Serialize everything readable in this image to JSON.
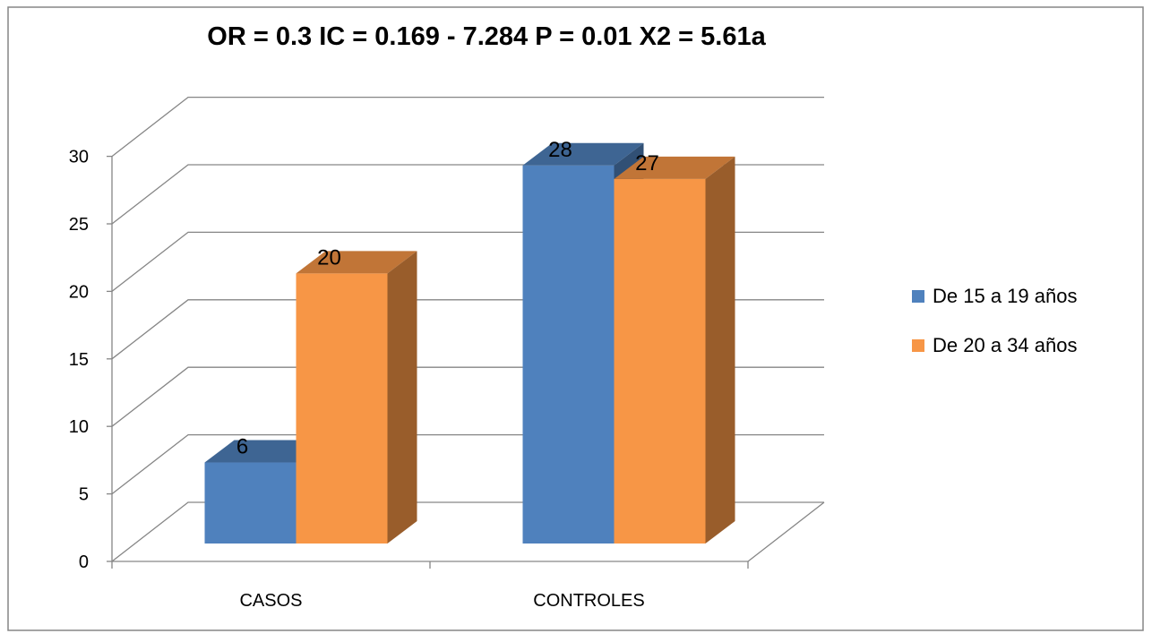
{
  "chart_data": {
    "type": "bar",
    "title": "OR = 0.3   IC = 0.169 - 7.284   P = 0.01   X2 = 5.61a",
    "categories": [
      "CASOS",
      "CONTROLES"
    ],
    "series": [
      {
        "name": "De 15 a 19 años",
        "values": [
          6,
          28
        ],
        "color": "#4f81bd"
      },
      {
        "name": "De 20 a 34 años",
        "values": [
          20,
          27
        ],
        "color": "#f79646"
      }
    ],
    "ylim": [
      0,
      30
    ],
    "yticks": [
      0,
      5,
      10,
      15,
      20,
      25,
      30
    ],
    "xlabel": "",
    "ylabel": "",
    "grid": true,
    "legend_position": "right",
    "style": "3d-column"
  }
}
